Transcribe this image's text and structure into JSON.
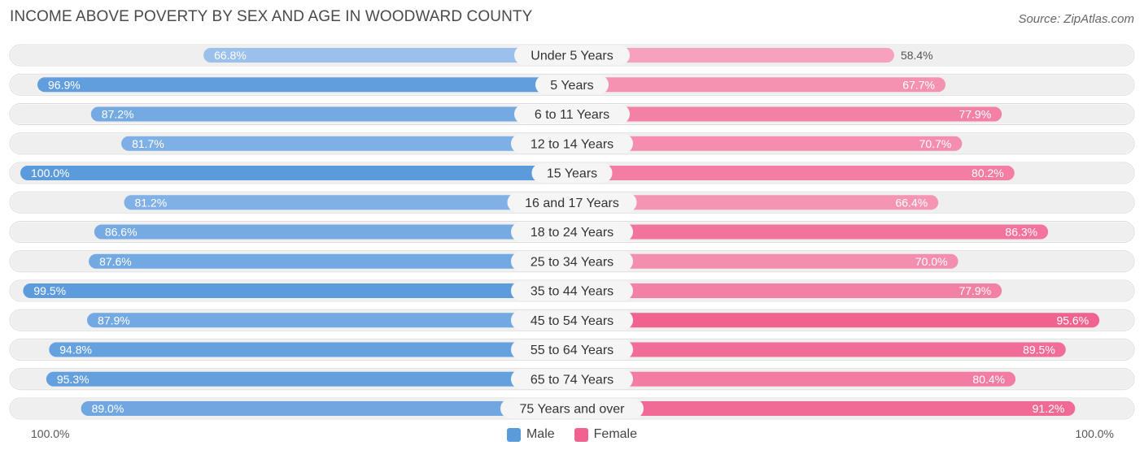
{
  "title": "INCOME ABOVE POVERTY BY SEX AND AGE IN WOODWARD COUNTY",
  "source": "Source: ZipAtlas.com",
  "colors": {
    "male_light": "#a9c8ef",
    "male_dark": "#5b9bdc",
    "female_light": "#f7a8c2",
    "female_dark": "#f0628f",
    "track": "#efefef"
  },
  "legend": {
    "male": "Male",
    "female": "Female"
  },
  "axis": {
    "left_label": "100.0%",
    "right_label": "100.0%"
  },
  "chart_data": {
    "type": "bar",
    "orientation": "horizontal-diverging",
    "categories": [
      "Under 5 Years",
      "5 Years",
      "6 to 11 Years",
      "12 to 14 Years",
      "15 Years",
      "16 and 17 Years",
      "18 to 24 Years",
      "25 to 34 Years",
      "35 to 44 Years",
      "45 to 54 Years",
      "55 to 64 Years",
      "65 to 74 Years",
      "75 Years and over"
    ],
    "series": [
      {
        "name": "Male",
        "values": [
          66.8,
          96.9,
          87.2,
          81.7,
          100.0,
          81.2,
          86.6,
          87.6,
          99.5,
          87.9,
          94.8,
          95.3,
          89.0
        ],
        "labels": [
          "66.8%",
          "96.9%",
          "87.2%",
          "81.7%",
          "100.0%",
          "81.2%",
          "86.6%",
          "87.6%",
          "99.5%",
          "87.9%",
          "94.8%",
          "95.3%",
          "89.0%"
        ]
      },
      {
        "name": "Female",
        "values": [
          58.4,
          67.7,
          77.9,
          70.7,
          80.2,
          66.4,
          86.3,
          70.0,
          77.9,
          95.6,
          89.5,
          80.4,
          91.2
        ],
        "labels": [
          "58.4%",
          "67.7%",
          "77.9%",
          "70.7%",
          "80.2%",
          "66.4%",
          "86.3%",
          "70.0%",
          "77.9%",
          "95.6%",
          "89.5%",
          "80.4%",
          "91.2%"
        ]
      }
    ],
    "xlim": [
      0,
      100
    ]
  }
}
